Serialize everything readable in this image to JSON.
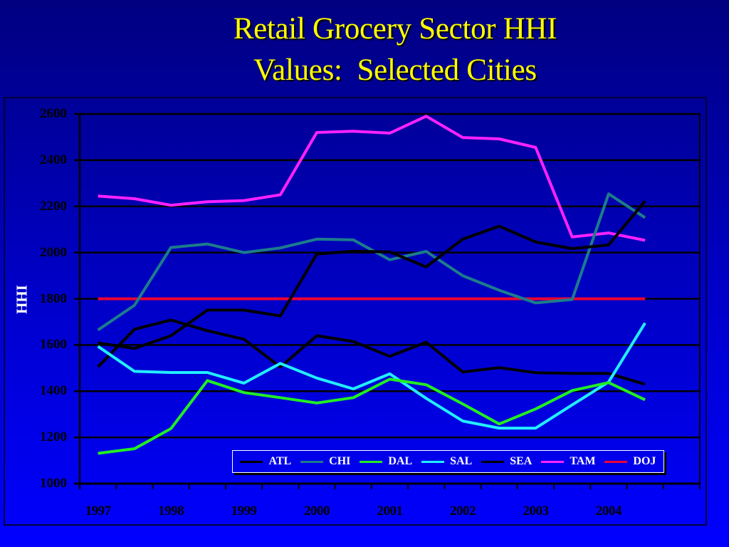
{
  "title": {
    "line1": "Retail Grocery Sector HHI",
    "line2": "Values:  Selected Cities"
  },
  "colors": {
    "title": "#FFFF00",
    "ATL": "#000000",
    "CHI": "#1C7C8C",
    "DAL": "#22EE22",
    "SAL": "#22EEFF",
    "SEA": "#000000",
    "TAM": "#FF22FF",
    "DOJ": "#EE0033"
  },
  "chart_data": {
    "type": "line",
    "title": "Retail Grocery Sector HHI Values:  Selected Cities",
    "xlabel": "",
    "ylabel": "HHI",
    "ylim": [
      1000,
      2600
    ],
    "yticks": [
      2600,
      2400,
      2200,
      2000,
      1800,
      1600,
      1400,
      1200,
      1000
    ],
    "xtick_labels": [
      "1997",
      "1998",
      "1999",
      "2000",
      "2001",
      "2002",
      "2003",
      "2004"
    ],
    "grid": "horizontal",
    "legend_position": "bottom-inside",
    "x": [
      "1997.0",
      "1997.5",
      "1998.0",
      "1998.5",
      "1999.0",
      "1999.5",
      "2000.0",
      "2000.5",
      "2001.0",
      "2001.5",
      "2002.0",
      "2002.5",
      "2003.0",
      "2003.5",
      "2004.0",
      "2004.5"
    ],
    "series": [
      {
        "name": "ATL",
        "values": [
          1609,
          1585,
          1640,
          1751,
          1751,
          1726,
          1994,
          2006,
          2003,
          1938,
          2058,
          2114,
          2046,
          2017,
          2033,
          2223
        ]
      },
      {
        "name": "CHI",
        "values": [
          1665,
          1772,
          2022,
          2037,
          2000,
          2020,
          2058,
          2055,
          1969,
          2005,
          1900,
          1837,
          1782,
          1797,
          2254,
          2151
        ]
      },
      {
        "name": "DAL",
        "values": [
          1131,
          1151,
          1238,
          1446,
          1394,
          1372,
          1349,
          1372,
          1452,
          1428,
          1345,
          1258,
          1323,
          1403,
          1437,
          1363
        ]
      },
      {
        "name": "SAL",
        "values": [
          1594,
          1486,
          1481,
          1481,
          1435,
          1520,
          1457,
          1410,
          1475,
          1369,
          1271,
          1240,
          1240,
          1341,
          1440,
          1695
        ]
      },
      {
        "name": "SEA",
        "values": [
          1505,
          1668,
          1708,
          1662,
          1625,
          1505,
          1640,
          1615,
          1551,
          1612,
          1483,
          1502,
          1480,
          1477,
          1477,
          1430
        ]
      },
      {
        "name": "TAM",
        "values": [
          2245,
          2233,
          2205,
          2220,
          2225,
          2250,
          2520,
          2525,
          2517,
          2590,
          2498,
          2492,
          2455,
          2068,
          2085,
          2053
        ]
      },
      {
        "name": "DOJ",
        "values": [
          1800,
          1800,
          1800,
          1800,
          1800,
          1800,
          1800,
          1800,
          1800,
          1800,
          1800,
          1800,
          1800,
          1800,
          1800,
          1800
        ]
      }
    ]
  },
  "legend": [
    "ATL",
    "CHI",
    "DAL",
    "SAL",
    "SEA",
    "TAM",
    "DOJ"
  ]
}
